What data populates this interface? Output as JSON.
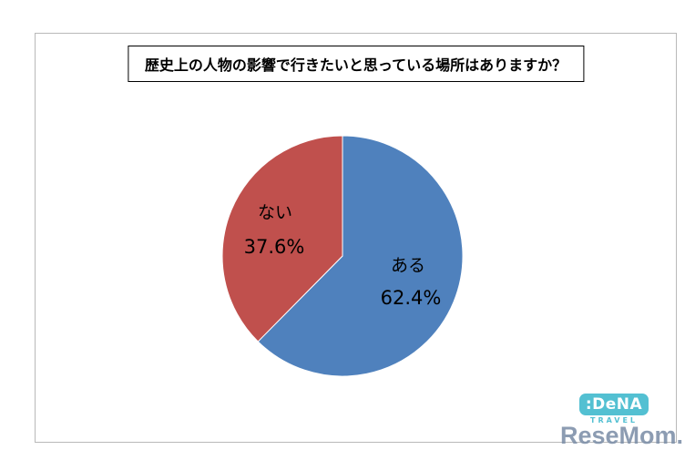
{
  "chart_data": {
    "type": "pie",
    "title": "歴史上の人物の影響で行きたいと思っている場所はありますか？",
    "categories": [
      "ある",
      "ない"
    ],
    "values": [
      62.4,
      37.6
    ],
    "display_values": [
      "62.4%",
      "37.6%"
    ],
    "colors": [
      "#4F81BD",
      "#C0504D"
    ],
    "start_angle_deg": 0,
    "direction": "clockwise",
    "legend": "none"
  },
  "branding": {
    "dena_logo_text": ":DeNA",
    "dena_sub_text": "TRAVEL",
    "watermark": "ReseMom."
  }
}
